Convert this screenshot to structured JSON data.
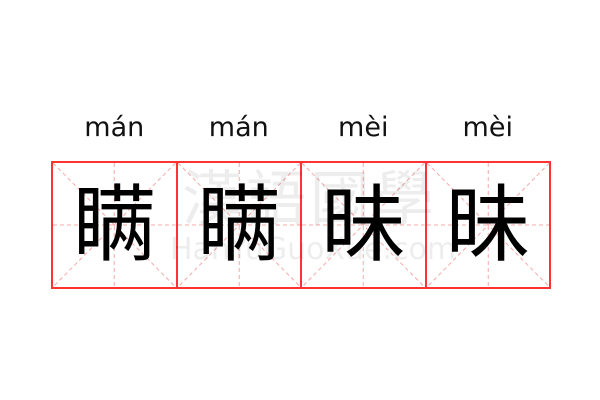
{
  "entries": [
    {
      "pinyin": "mán",
      "char": "瞒"
    },
    {
      "pinyin": "mán",
      "char": "瞒"
    },
    {
      "pinyin": "mèi",
      "char": "昧"
    },
    {
      "pinyin": "mèi",
      "char": "昧"
    }
  ],
  "watermark": {
    "cn": "漢語國學",
    "en": "HanYuGuoXue.com"
  },
  "colors": {
    "border": "#ff3333",
    "guide": "#f7a8a8",
    "text": "#000000"
  }
}
